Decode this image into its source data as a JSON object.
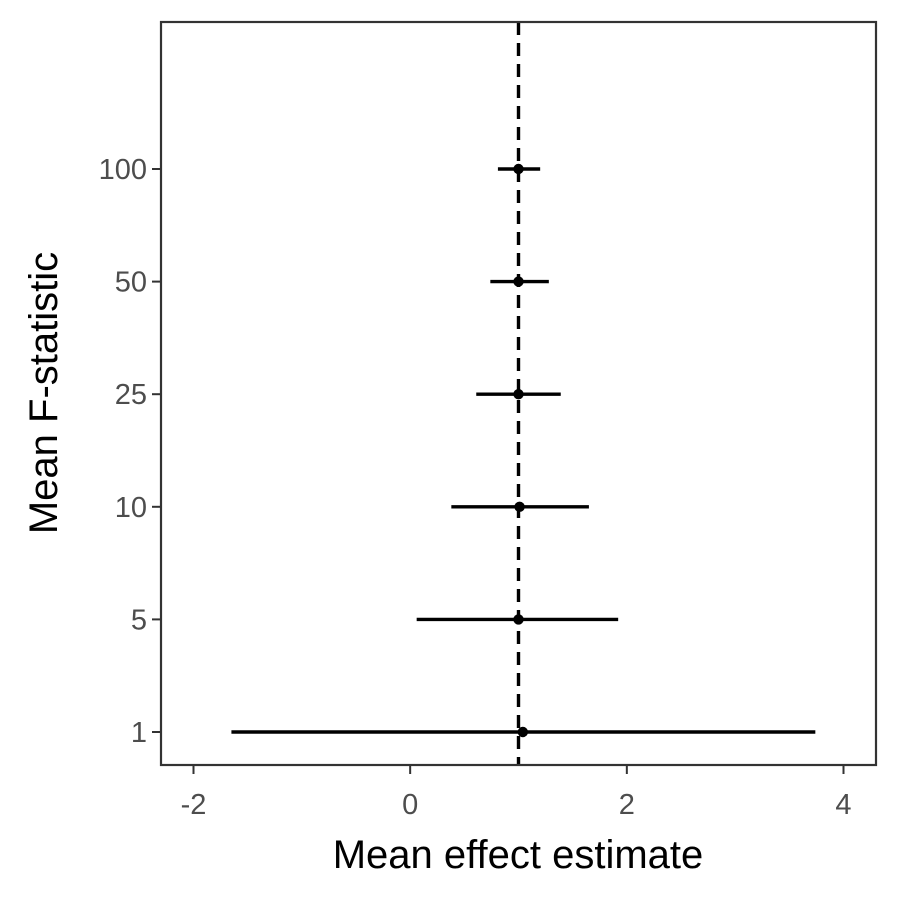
{
  "chart_data": {
    "type": "forest",
    "xlabel": "Mean effect estimate",
    "ylabel": "Mean F-statistic",
    "xlim": [
      -2.3,
      4.3
    ],
    "x_ticks": [
      -2,
      0,
      2,
      4
    ],
    "x_tick_labels": [
      "-2",
      "0",
      "2",
      "4"
    ],
    "reference_line": {
      "x": 1,
      "style": "dashed",
      "color": "#000000"
    },
    "grid": false,
    "colors": {
      "marks": "#000000",
      "panel_border": "#333333",
      "tick_text": "#4d4d4d"
    },
    "categories": [
      "1",
      "5",
      "10",
      "25",
      "50",
      "100"
    ],
    "points": [
      {
        "category": "1",
        "estimate": 1.04,
        "lower": -1.65,
        "upper": 3.74
      },
      {
        "category": "5",
        "estimate": 1.0,
        "lower": 0.06,
        "upper": 1.92
      },
      {
        "category": "10",
        "estimate": 1.01,
        "lower": 0.38,
        "upper": 1.65
      },
      {
        "category": "25",
        "estimate": 1.0,
        "lower": 0.61,
        "upper": 1.39
      },
      {
        "category": "50",
        "estimate": 1.0,
        "lower": 0.74,
        "upper": 1.28
      },
      {
        "category": "100",
        "estimate": 1.0,
        "lower": 0.81,
        "upper": 1.2
      }
    ]
  }
}
